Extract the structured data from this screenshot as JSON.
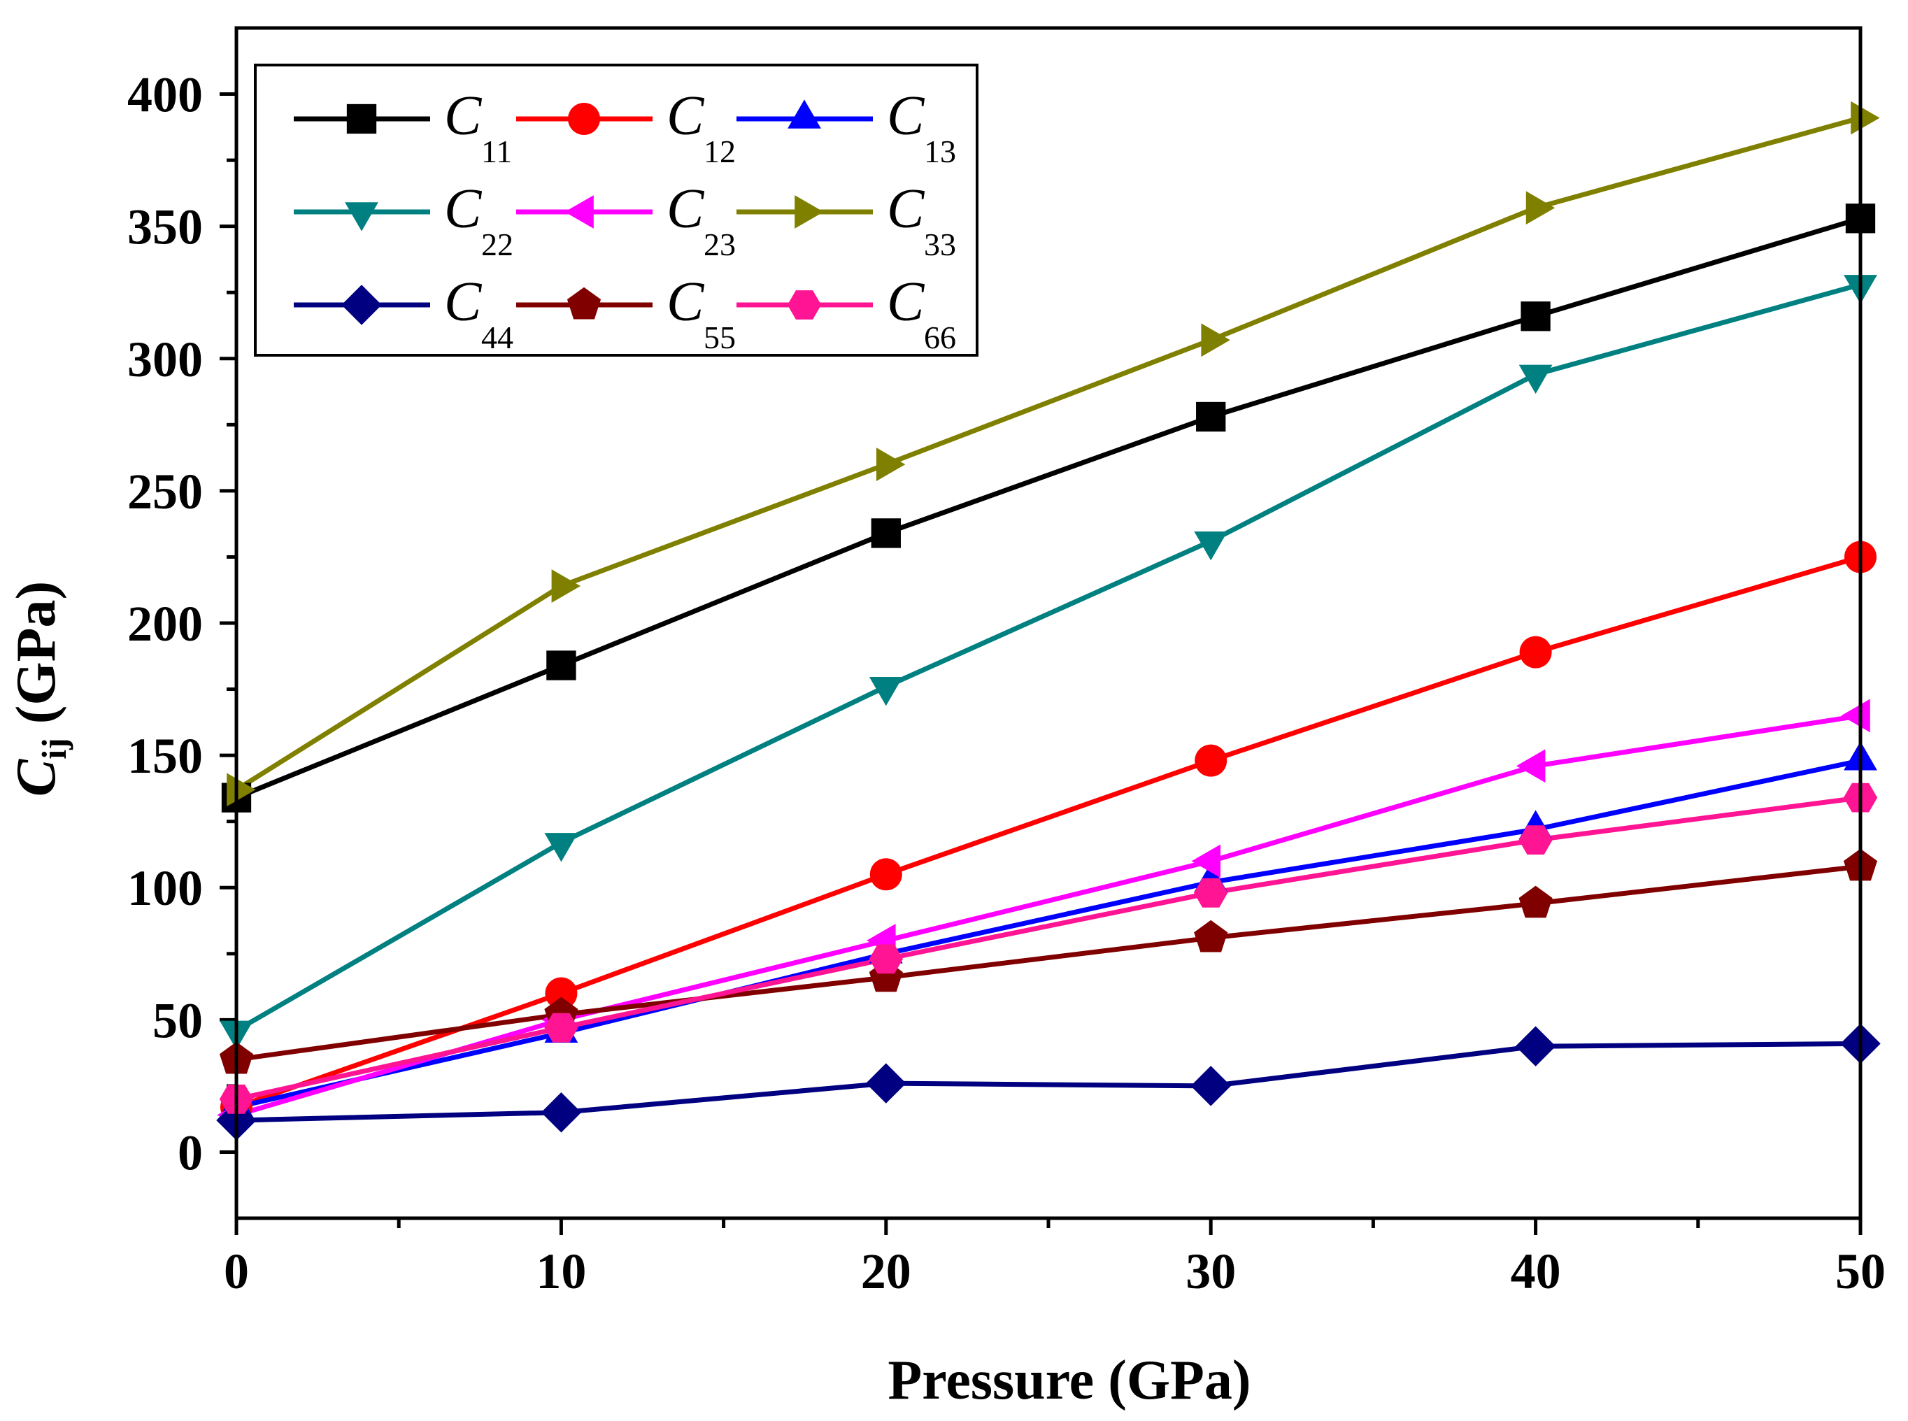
{
  "chart_data": {
    "type": "line",
    "title": "",
    "xlabel": "Pressure (GPa)",
    "ylabel": {
      "main": "C",
      "sub": "ij",
      "rest": " (GPa)"
    },
    "x": [
      0,
      10,
      20,
      30,
      40,
      50
    ],
    "xlim": [
      0,
      50
    ],
    "ylim": [
      -25,
      425
    ],
    "xticks": [
      0,
      10,
      20,
      30,
      40,
      50
    ],
    "yticks": [
      0,
      50,
      100,
      150,
      200,
      250,
      300,
      350,
      400
    ],
    "xtick_labels": [
      "0",
      "10",
      "20",
      "30",
      "40",
      "50"
    ],
    "ytick_labels": [
      "0",
      "50",
      "100",
      "150",
      "200",
      "250",
      "300",
      "350",
      "400"
    ],
    "legend_position": "top-left",
    "series": [
      {
        "name": "C11",
        "symbol": "C",
        "sub": "11",
        "color": "#000000",
        "marker": "square",
        "values": [
          134,
          184,
          234,
          278,
          316,
          353
        ]
      },
      {
        "name": "C12",
        "symbol": "C",
        "sub": "12",
        "color": "#ff0000",
        "marker": "circle",
        "values": [
          17,
          60,
          105,
          148,
          189,
          225
        ]
      },
      {
        "name": "C13",
        "symbol": "C",
        "sub": "13",
        "color": "#0000ff",
        "marker": "triangle-up",
        "values": [
          17,
          45,
          75,
          102,
          122,
          148
        ]
      },
      {
        "name": "C22",
        "symbol": "C",
        "sub": "22",
        "color": "#008080",
        "marker": "triangle-down",
        "values": [
          46,
          117,
          176,
          231,
          294,
          328
        ]
      },
      {
        "name": "C23",
        "symbol": "C",
        "sub": "23",
        "color": "#ff00ff",
        "marker": "triangle-left",
        "values": [
          14,
          50,
          80,
          110,
          146,
          165
        ]
      },
      {
        "name": "C33",
        "symbol": "C",
        "sub": "33",
        "color": "#808000",
        "marker": "triangle-right",
        "values": [
          137,
          214,
          260,
          307,
          357,
          391
        ]
      },
      {
        "name": "C44",
        "symbol": "C",
        "sub": "44",
        "color": "#000080",
        "marker": "diamond",
        "values": [
          12,
          15,
          26,
          25,
          40,
          41
        ]
      },
      {
        "name": "C55",
        "symbol": "C",
        "sub": "55",
        "color": "#800000",
        "marker": "pentagon",
        "values": [
          35,
          52,
          66,
          81,
          94,
          108
        ]
      },
      {
        "name": "C66",
        "symbol": "C",
        "sub": "66",
        "color": "#ff1493",
        "marker": "hexagon",
        "values": [
          20,
          47,
          73,
          98,
          118,
          134
        ]
      }
    ]
  }
}
